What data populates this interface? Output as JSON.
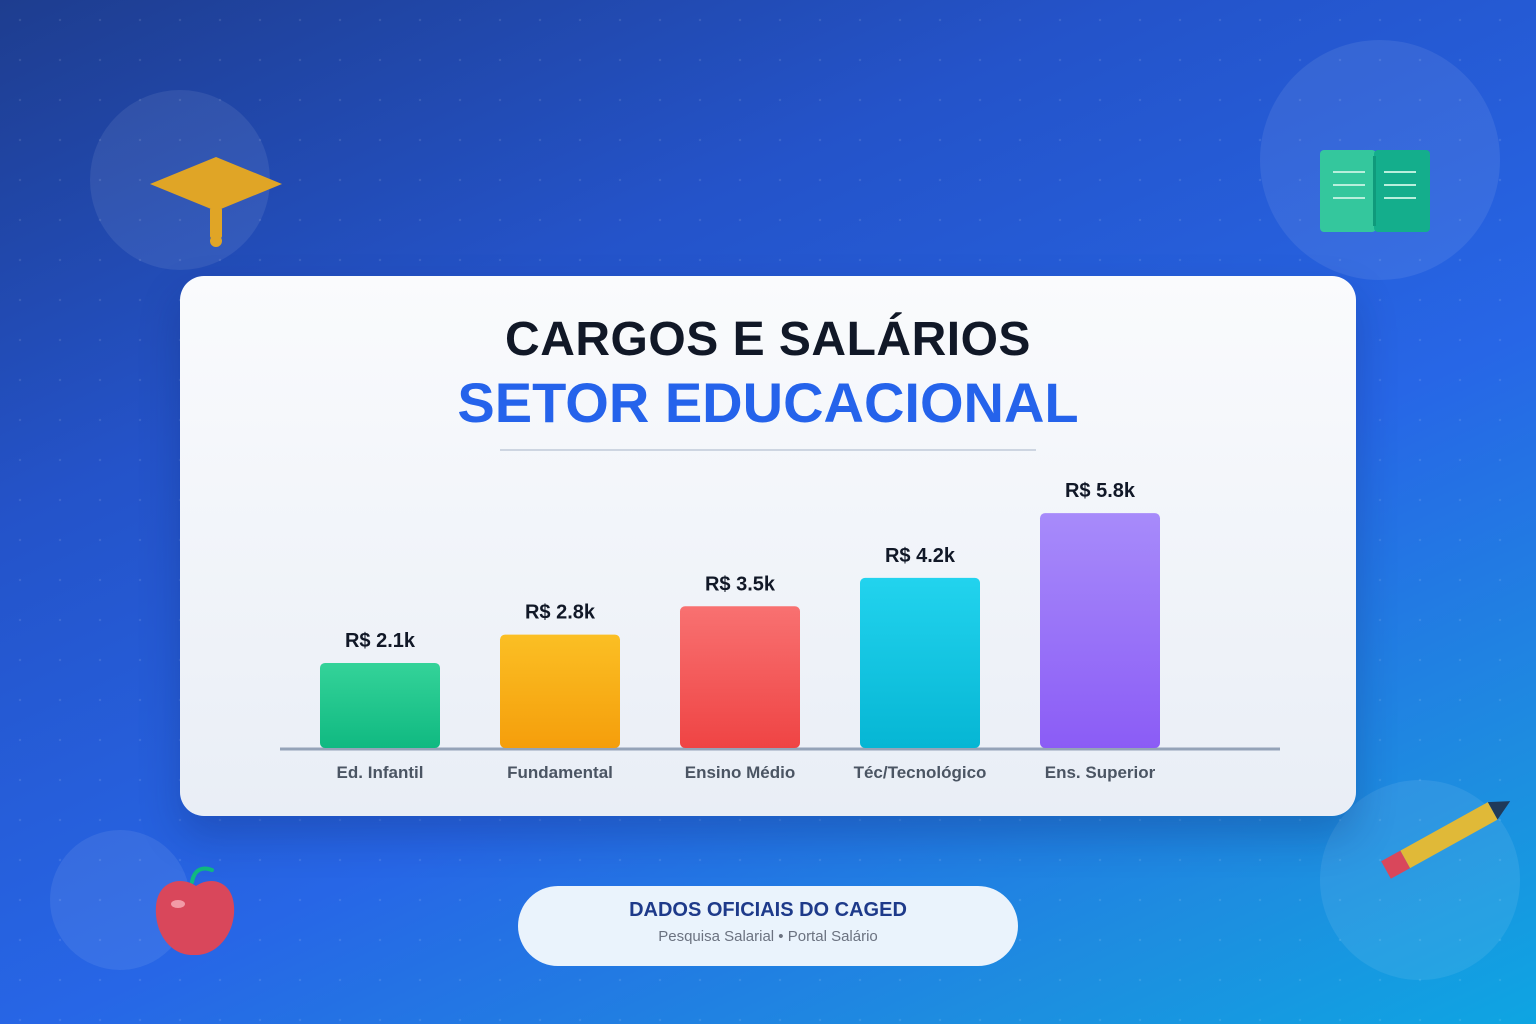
{
  "header": {
    "title_line1": "CARGOS E SALÁRIOS",
    "title_line2": "SETOR EDUCACIONAL"
  },
  "footer": {
    "title": "DADOS OFICIAIS DO CAGED",
    "subtitle": "Pesquisa Salarial • Portal Salário"
  },
  "decorations": {
    "icons": [
      "graduation-cap-icon",
      "book-icon",
      "apple-icon",
      "pencil-icon"
    ]
  },
  "colors": {
    "title_primary": "#111827",
    "title_accent": "#2563eb",
    "badge_title": "#1e3a8a"
  },
  "chart_data": {
    "type": "bar",
    "categories": [
      "Ed. Infantil",
      "Fundamental",
      "Ensino Médio",
      "Téc/Tecnológico",
      "Ens. Superior"
    ],
    "values": [
      2.1,
      2.8,
      3.5,
      4.2,
      5.8
    ],
    "value_labels": [
      "R$ 2.1k",
      "R$ 2.8k",
      "R$ 3.5k",
      "R$ 4.2k",
      "R$ 5.8k"
    ],
    "bar_colors": [
      [
        "#34d399",
        "#10b981"
      ],
      [
        "#fbbf24",
        "#f59e0b"
      ],
      [
        "#f87171",
        "#ef4444"
      ],
      [
        "#22d3ee",
        "#06b6d4"
      ],
      [
        "#a78bfa",
        "#8b5cf6"
      ]
    ],
    "ylim": [
      0,
      6
    ],
    "grid": false,
    "legend": "none"
  }
}
